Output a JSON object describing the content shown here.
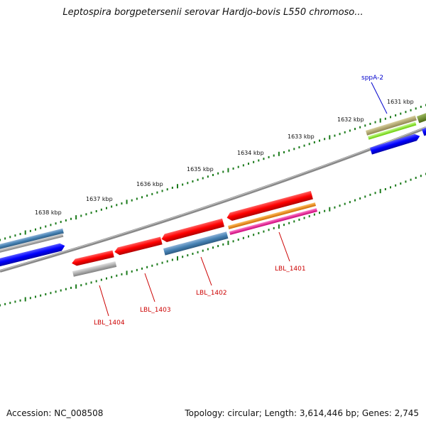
{
  "title": "Leptospira borgpetersenii serovar Hardjo-bovis L550 chromoso...",
  "footer": {
    "accession": "Accession: NC_008508",
    "summary": "Topology: circular; Length: 3,614,446 bp; Genes: 2,745"
  },
  "ticks": [
    {
      "label": "1631 kbp"
    },
    {
      "label": "1632 kbp"
    },
    {
      "label": "1633 kbp"
    },
    {
      "label": "1634 kbp"
    },
    {
      "label": "1635 kbp"
    },
    {
      "label": "1636 kbp"
    },
    {
      "label": "1637 kbp"
    },
    {
      "label": "1638 kbp"
    }
  ],
  "labels": [
    {
      "text": "sppA-2",
      "color": "#0000cc"
    },
    {
      "text": "LBL_1401",
      "color": "#cc0000"
    },
    {
      "text": "LBL_1402",
      "color": "#cc0000"
    },
    {
      "text": "LBL_1403",
      "color": "#cc0000"
    },
    {
      "text": "LBL_1404",
      "color": "#cc0000"
    }
  ],
  "colors": {
    "backbone": "#808080",
    "tick": "#1a7a1a",
    "red": "#ff0000",
    "steelblue": "#4682b4",
    "blue": "#0000ff",
    "gray": "#b0b0b0",
    "orange": "#ff8c00",
    "magenta": "#ff1aa8",
    "olive": "#b5a86a",
    "lime": "#99ff33",
    "darkolive": "#6b8e23"
  }
}
